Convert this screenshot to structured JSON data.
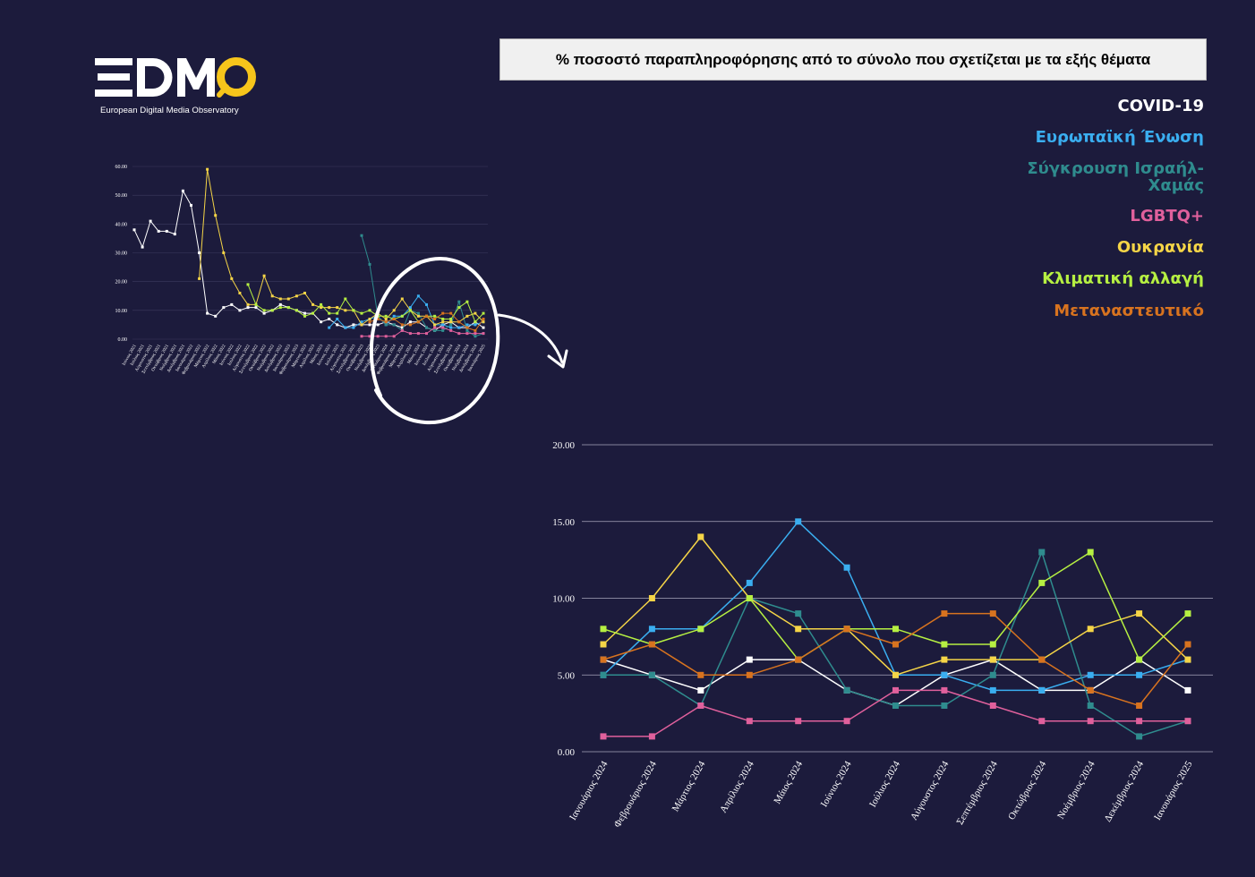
{
  "logo": {
    "wordmark": "EDMO",
    "tagline": "European Digital Media Observatory",
    "colors": {
      "text": "#ffffff",
      "accent": "#f6c51b"
    }
  },
  "theme": {
    "background": "#1c1b3c",
    "text": "#ffffff"
  },
  "chart_data": [
    {
      "type": "line",
      "title": "% ποσοστό παραπληροφόρησης από το σύνολο που σχετίζεται με τα εξής θέματα",
      "categories": [
        "Ιανουάριος 2024",
        "Φεβρουάριος 2024",
        "Μάρτιος 2024",
        "Απρίλιος 2024",
        "Μάιος 2024",
        "Ιούνιος 2024",
        "Ιούλιος 2024",
        "Αύγουστος 2024",
        "Σεπτέμβριος 2024",
        "Οκτώβριος 2024",
        "Νοέμβριος 2024",
        "Δεκέμβριος 2024",
        "Ιανουάριος 2025"
      ],
      "ylim": [
        0,
        20
      ],
      "yticks": [
        0,
        5,
        10,
        15,
        20
      ],
      "ytick_labels": [
        "0.00",
        "5.00",
        "10.00",
        "15.00",
        "20.00"
      ],
      "grid": true,
      "legend": "top-right",
      "series": [
        {
          "name": "COVID-19",
          "color": "#ffffff",
          "values": [
            6,
            5,
            4,
            6,
            6,
            4,
            3,
            5,
            6,
            4,
            4,
            6,
            4
          ]
        },
        {
          "name": "Ευρωπαϊκή Ένωση",
          "color": "#3aaef0",
          "values": [
            5,
            8,
            8,
            11,
            15,
            12,
            5,
            5,
            4,
            4,
            5,
            5,
            6
          ]
        },
        {
          "name": "Σύγκρουση Ισραήλ-Χαμάς",
          "color": "#2f8c8e",
          "values": [
            5,
            5,
            3,
            10,
            9,
            4,
            3,
            3,
            5,
            13,
            3,
            1,
            2
          ]
        },
        {
          "name": "LGBTQ+",
          "color": "#e0609c",
          "values": [
            1,
            1,
            3,
            2,
            2,
            2,
            4,
            4,
            3,
            2,
            2,
            2,
            2
          ]
        },
        {
          "name": "Ουκρανία",
          "color": "#f5d547",
          "values": [
            7,
            10,
            14,
            10,
            8,
            8,
            5,
            6,
            6,
            6,
            8,
            9,
            6
          ]
        },
        {
          "name": "Κλιματική αλλαγή",
          "color": "#b6f042",
          "values": [
            8,
            7,
            8,
            10,
            6,
            8,
            8,
            7,
            7,
            11,
            13,
            6,
            9
          ]
        },
        {
          "name": "Μεταναστευτικό",
          "color": "#d8731f",
          "values": [
            6,
            7,
            5,
            5,
            6,
            8,
            7,
            9,
            9,
            6,
            4,
            3,
            7
          ]
        }
      ]
    },
    {
      "type": "line",
      "categories": [
        "Ιούνιος 2021",
        "Ιούλιος 2021",
        "Αύγουστος 2021",
        "Σεπτέμβριος 2021",
        "Οκτώβριος 2021",
        "Νοέμβριος 2021",
        "Δεκέμβριος 2021",
        "Ιανουάριος 2022",
        "Φεβρουάριος 2022",
        "Μάρτιος 2022",
        "Απρίλιος 2022",
        "Μάιος 2022",
        "Ιούνιος 2022",
        "Ιούλιος 2022",
        "Αύγουστος 2022",
        "Σεπτέμβριος 2022",
        "Οκτώβριος 2022",
        "Νοέμβριος 2022",
        "Δεκέμβριος 2022",
        "Ιανουάριος 2023",
        "Φεβρουάριος 2023",
        "Μάρτιος 2023",
        "Απρίλιος 2023",
        "Μάιος 2023",
        "Ιούνιος 2023",
        "Ιούλιος 2023",
        "Αύγουστος 2023",
        "Σεπτέμβριος 2023",
        "Οκτώβριος 2023",
        "Νοέμβριος 2023",
        "Δεκέμβριος 2023",
        "Ιανουάριος 2024",
        "Φεβρουάριος 2024",
        "Μάρτιος 2024",
        "Απρίλιος 2024",
        "Μάιος 2024",
        "Ιούνιος 2024",
        "Ιούλιος 2024",
        "Αύγουστος 2024",
        "Σεπτέμβριος 2024",
        "Οκτώβριος 2024",
        "Νοέμβριος 2024",
        "Δεκέμβριος 2024",
        "Ιανουάριος 2025"
      ],
      "ylim": [
        0,
        60
      ],
      "yticks": [
        0,
        10,
        20,
        30,
        40,
        50,
        60
      ],
      "ytick_labels": [
        "0.00",
        "10.00",
        "20.00",
        "30.00",
        "40.00",
        "50.00",
        "60.00"
      ],
      "grid": true,
      "series": [
        {
          "color": "#ffffff",
          "values": [
            38,
            32,
            41,
            37.5,
            37.5,
            36.5,
            51.5,
            46.5,
            30,
            9,
            8,
            11,
            12,
            10,
            11,
            11,
            9,
            10,
            12,
            11,
            10,
            9,
            9,
            6,
            7,
            5,
            4,
            5,
            5,
            5,
            5,
            6,
            5,
            4,
            6,
            6,
            4,
            3,
            5,
            6,
            4,
            4,
            6,
            4
          ]
        },
        {
          "color": "#3aaef0",
          "values": [
            null,
            null,
            null,
            null,
            null,
            null,
            null,
            null,
            null,
            null,
            null,
            null,
            null,
            null,
            null,
            null,
            null,
            null,
            null,
            null,
            null,
            null,
            null,
            null,
            4,
            7,
            4,
            4,
            6,
            7,
            8,
            5,
            8,
            8,
            11,
            15,
            12,
            5,
            5,
            4,
            4,
            5,
            5,
            6
          ]
        },
        {
          "color": "#2f8c8e",
          "values": [
            null,
            null,
            null,
            null,
            null,
            null,
            null,
            null,
            null,
            null,
            null,
            null,
            null,
            null,
            null,
            null,
            null,
            null,
            null,
            null,
            null,
            null,
            null,
            null,
            null,
            null,
            null,
            null,
            36,
            26,
            8,
            5,
            5,
            3,
            10,
            9,
            4,
            3,
            3,
            5,
            13,
            3,
            1,
            2
          ]
        },
        {
          "color": "#e0609c",
          "values": [
            null,
            null,
            null,
            null,
            null,
            null,
            null,
            null,
            null,
            null,
            null,
            null,
            null,
            null,
            null,
            null,
            null,
            null,
            null,
            null,
            null,
            null,
            null,
            null,
            null,
            null,
            null,
            null,
            1,
            1,
            1,
            1,
            1,
            3,
            2,
            2,
            2,
            4,
            4,
            3,
            2,
            2,
            2,
            2
          ]
        },
        {
          "color": "#f5d547",
          "values": [
            null,
            null,
            null,
            null,
            null,
            null,
            null,
            null,
            21,
            59,
            43,
            30,
            21,
            16,
            12,
            12,
            22,
            15,
            14,
            14,
            15,
            16,
            12,
            11,
            11,
            11,
            10,
            10,
            5,
            7,
            9,
            7,
            10,
            14,
            10,
            8,
            8,
            5,
            6,
            6,
            6,
            8,
            9,
            6
          ]
        },
        {
          "color": "#b6f042",
          "values": [
            null,
            null,
            null,
            null,
            null,
            null,
            null,
            null,
            null,
            null,
            null,
            null,
            null,
            null,
            19,
            12,
            10,
            10,
            11,
            11,
            10,
            8,
            9,
            12,
            9,
            9,
            14,
            10,
            9,
            10,
            8,
            8,
            7,
            8,
            10,
            6,
            8,
            8,
            7,
            7,
            11,
            13,
            6,
            9
          ]
        },
        {
          "color": "#d8731f",
          "values": [
            null,
            null,
            null,
            null,
            null,
            null,
            null,
            null,
            null,
            null,
            null,
            null,
            null,
            null,
            null,
            null,
            null,
            null,
            null,
            null,
            null,
            null,
            null,
            null,
            null,
            null,
            null,
            null,
            null,
            6,
            7,
            6,
            7,
            5,
            5,
            6,
            8,
            7,
            9,
            9,
            6,
            4,
            3,
            7
          ]
        }
      ]
    }
  ]
}
